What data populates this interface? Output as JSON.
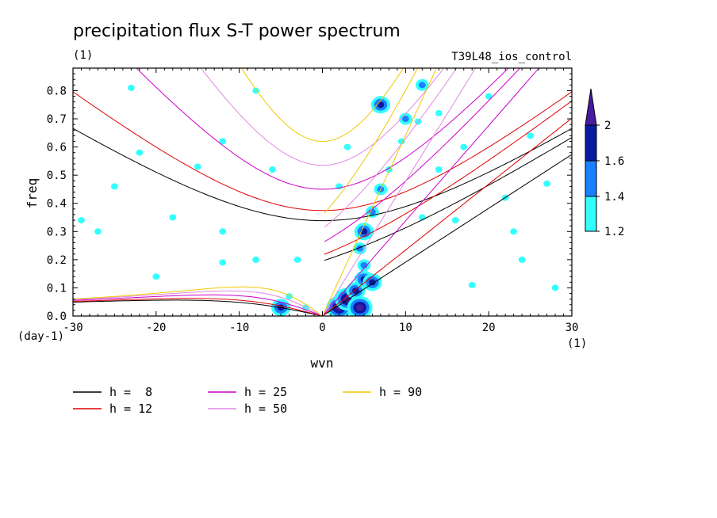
{
  "chart_data": {
    "type": "contour",
    "title": "precipitation flux S-T power spectrum",
    "units_label": "(1)",
    "run_label": "T39L48_ios_control",
    "xlabel": "wvn",
    "ylabel": "freq",
    "x_units": "(1)",
    "y_units": "(day-1)",
    "xlim": [
      -30,
      30
    ],
    "ylim": [
      0,
      0.88
    ],
    "x_ticks": [
      -30,
      -20,
      -10,
      0,
      10,
      20,
      30
    ],
    "x_tick_labels": [
      "-30",
      "-20",
      "-10",
      "0",
      "10",
      "20",
      "30"
    ],
    "y_ticks": [
      0,
      0.1,
      0.2,
      0.3,
      0.4,
      0.5,
      0.6,
      0.7,
      0.8
    ],
    "y_tick_labels": [
      "0.0",
      "0.1",
      "0.2",
      "0.3",
      "0.4",
      "0.5",
      "0.6",
      "0.7",
      "0.8"
    ],
    "colorbar": {
      "levels": [
        1.2,
        1.4,
        1.6,
        2
      ],
      "level_labels": [
        "1.2",
        "1.4",
        "1.6",
        "2"
      ],
      "colors": [
        "#33ffff",
        "#1a80ff",
        "#0a1aa0",
        "#4a1aa0"
      ]
    },
    "dispersion_curves": [
      {
        "name": "h =  8",
        "h": 8,
        "color": "#000000"
      },
      {
        "name": "h = 12",
        "h": 12,
        "color": "#e00000"
      },
      {
        "name": "h = 25",
        "h": 25,
        "color": "#cc00cc"
      },
      {
        "name": "h = 50",
        "h": 50,
        "color": "#e08ae0"
      },
      {
        "name": "h = 90",
        "h": 90,
        "color": "#f0c800"
      }
    ],
    "spectral_peaks": [
      {
        "x": 2,
        "y": 0.03,
        "level": 2
      },
      {
        "x": 3,
        "y": 0.06,
        "level": 2
      },
      {
        "x": 4,
        "y": 0.09,
        "level": 1.6
      },
      {
        "x": 4.5,
        "y": 0.03,
        "level": 2
      },
      {
        "x": 5,
        "y": 0.13,
        "level": 1.6
      },
      {
        "x": 5,
        "y": 0.18,
        "level": 1.4
      },
      {
        "x": 6,
        "y": 0.12,
        "level": 1.6
      },
      {
        "x": 4.5,
        "y": 0.24,
        "level": 1.4
      },
      {
        "x": 5,
        "y": 0.3,
        "level": 1.6
      },
      {
        "x": 6,
        "y": 0.37,
        "level": 1.4
      },
      {
        "x": 7,
        "y": 0.45,
        "level": 1.4
      },
      {
        "x": 8,
        "y": 0.52,
        "level": 1.2
      },
      {
        "x": 7,
        "y": 0.75,
        "level": 1.6
      },
      {
        "x": 10,
        "y": 0.7,
        "level": 1.4
      },
      {
        "x": 12,
        "y": 0.82,
        "level": 1.4
      },
      {
        "x": 11.5,
        "y": 0.69,
        "level": 1.2
      },
      {
        "x": 9.5,
        "y": 0.62,
        "level": 1.2
      },
      {
        "x": -5,
        "y": 0.03,
        "level": 1.6
      },
      {
        "x": -4,
        "y": 0.07,
        "level": 1.2
      },
      {
        "x": -2,
        "y": 0.03,
        "level": 1.2
      },
      {
        "x": -29,
        "y": 0.34,
        "level": 1.2
      },
      {
        "x": -23,
        "y": 0.81,
        "level": 1.2
      },
      {
        "x": -12,
        "y": 0.62,
        "level": 1.2
      },
      {
        "x": -20,
        "y": 0.14,
        "level": 1.2
      },
      {
        "x": -8,
        "y": 0.2,
        "level": 1.2
      },
      {
        "x": -12,
        "y": 0.19,
        "level": 1.2
      },
      {
        "x": -12,
        "y": 0.3,
        "level": 1.2
      },
      {
        "x": -25,
        "y": 0.46,
        "level": 1.2
      },
      {
        "x": -15,
        "y": 0.53,
        "level": 1.2
      },
      {
        "x": -6,
        "y": 0.52,
        "level": 1.2
      },
      {
        "x": 2,
        "y": 0.46,
        "level": 1.2
      },
      {
        "x": 3,
        "y": 0.6,
        "level": 1.2
      },
      {
        "x": 14,
        "y": 0.52,
        "level": 1.2
      },
      {
        "x": 16,
        "y": 0.34,
        "level": 1.2
      },
      {
        "x": 23,
        "y": 0.3,
        "level": 1.2
      },
      {
        "x": 25,
        "y": 0.64,
        "level": 1.2
      },
      {
        "x": 20,
        "y": 0.78,
        "level": 1.2
      },
      {
        "x": 27,
        "y": 0.47,
        "level": 1.2
      },
      {
        "x": 28,
        "y": 0.1,
        "level": 1.2
      },
      {
        "x": 24,
        "y": 0.2,
        "level": 1.2
      },
      {
        "x": 18,
        "y": 0.11,
        "level": 1.2
      },
      {
        "x": -27,
        "y": 0.3,
        "level": 1.2
      },
      {
        "x": -18,
        "y": 0.35,
        "level": 1.2
      },
      {
        "x": -3,
        "y": 0.2,
        "level": 1.2
      },
      {
        "x": 12,
        "y": 0.35,
        "level": 1.2
      },
      {
        "x": 17,
        "y": 0.6,
        "level": 1.2
      },
      {
        "x": 22,
        "y": 0.42,
        "level": 1.2
      },
      {
        "x": -22,
        "y": 0.58,
        "level": 1.2
      },
      {
        "x": -8,
        "y": 0.8,
        "level": 1.2
      },
      {
        "x": 14,
        "y": 0.72,
        "level": 1.2
      }
    ]
  }
}
